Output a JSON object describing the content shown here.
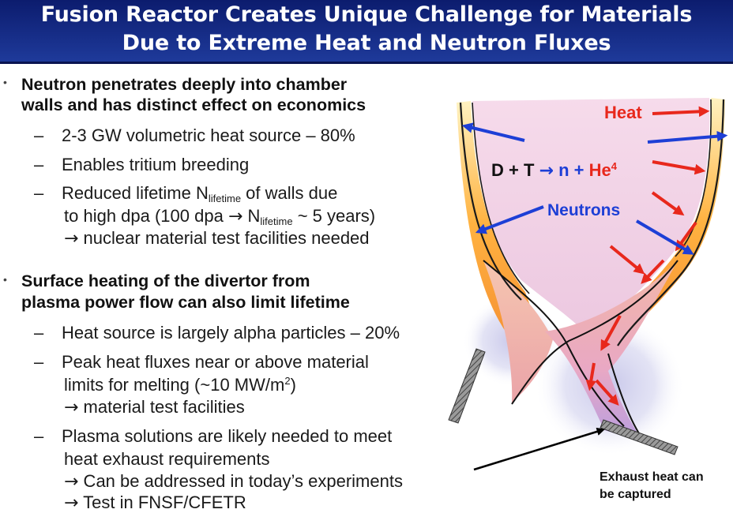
{
  "title": {
    "line1": "Fusion Reactor Creates Unique Challenge for Materials",
    "line2": "Due to Extreme Heat and Neutron Fluxes"
  },
  "bullets": [
    {
      "heading_line1": "Neutron penetrates deeply into chamber",
      "heading_line2": "walls and has distinct effect on economics",
      "items": [
        {
          "text": "2-3 GW volumetric heat source – 80%"
        },
        {
          "text": "Enables tritium breeding"
        },
        {
          "line1_pre": "Reduced lifetime N",
          "line1_sub": "lifetime",
          "line1_post": " of walls due",
          "line2_pre": "to high dpa (100 dpa ",
          "line2_arrow": "→",
          "line2_mid": " N",
          "line2_sub": "lifetime",
          "line2_post": " ~ 5 years)",
          "line3_arrow": "→",
          "line3_text": " nuclear material test facilities needed"
        }
      ]
    },
    {
      "heading_line1": "Surface heating of the divertor from",
      "heading_line2": "plasma power flow can also limit lifetime",
      "items": [
        {
          "text": "Heat source is largely alpha particles – 20%"
        },
        {
          "line1": "Peak heat fluxes near or above material",
          "line2_pre": "limits for melting (~10 MW/m",
          "line2_sup": "2",
          "line2_post": ")",
          "line3_arrow": "→",
          "line3_text": " material test facilities"
        },
        {
          "line1": "Plasma solutions are likely needed to meet",
          "line2": "heat exhaust requirements",
          "line3_arrow": "→",
          "line3_text": " Can be addressed in today’s experiments",
          "line4_arrow": "→",
          "line4_text": " Test in FNSF/CFETR"
        }
      ]
    }
  ],
  "diagram": {
    "heat_label": "Heat",
    "reaction_left": "D + T ",
    "reaction_arrow": "→",
    "reaction_n": " n + ",
    "reaction_he": "He",
    "reaction_he_sup": "4",
    "neutrons_label": "Neutrons",
    "exhaust_line1": "Exhaust heat can",
    "exhaust_line2": "be captured"
  },
  "colors": {
    "header_bg": "#1f3b9c",
    "heat_red": "#e8281c",
    "neutron_blue": "#1d3fd6",
    "plasma_pink": "#f2d4e8",
    "wall_yellow": "#ffd21a"
  }
}
